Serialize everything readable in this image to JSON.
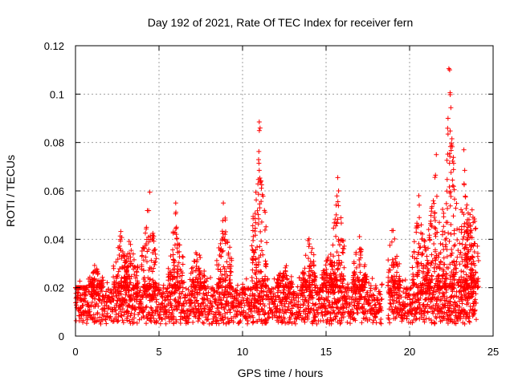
{
  "chart_data": {
    "type": "scatter",
    "title": "Day 192 of 2021, Rate Of TEC Index for receiver fern",
    "xlabel": "GPS time / hours",
    "ylabel": "ROTI / TECUs",
    "xlim": [
      0,
      25
    ],
    "ylim": [
      0,
      0.12
    ],
    "xticks": [
      0,
      5,
      10,
      15,
      20,
      25
    ],
    "yticks": [
      0,
      0.02,
      0.04,
      0.06,
      0.08,
      0.1,
      0.12
    ],
    "xtick_labels": [
      "0",
      "5",
      "10",
      "15",
      "20",
      "25"
    ],
    "ytick_labels": [
      "0",
      "0.02",
      "0.04",
      "0.06",
      "0.08",
      "0.1",
      "0.12"
    ],
    "grid": true,
    "marker": "+",
    "series_color": "#ff0000",
    "data_gap_hours": [
      18.35,
      18.7
    ],
    "x_extent": [
      0,
      24
    ],
    "baseline_band": [
      0.005,
      0.02
    ],
    "bursts": [
      {
        "x": 0.3,
        "peak": 0.02
      },
      {
        "x": 1.2,
        "peak": 0.031
      },
      {
        "x": 2.7,
        "peak": 0.044
      },
      {
        "x": 3.3,
        "peak": 0.046
      },
      {
        "x": 4.4,
        "peak": 0.06
      },
      {
        "x": 6.0,
        "peak": 0.055
      },
      {
        "x": 7.3,
        "peak": 0.038
      },
      {
        "x": 8.9,
        "peak": 0.055
      },
      {
        "x": 11.0,
        "peak": 0.089
      },
      {
        "x": 12.5,
        "peak": 0.032
      },
      {
        "x": 14.0,
        "peak": 0.045
      },
      {
        "x": 15.2,
        "peak": 0.038
      },
      {
        "x": 15.7,
        "peak": 0.066
      },
      {
        "x": 17.0,
        "peak": 0.043
      },
      {
        "x": 19.0,
        "peak": 0.047
      },
      {
        "x": 20.6,
        "peak": 0.059
      },
      {
        "x": 21.5,
        "peak": 0.075
      },
      {
        "x": 22.4,
        "peak": 0.111
      },
      {
        "x": 23.3,
        "peak": 0.077
      },
      {
        "x": 23.7,
        "peak": 0.064
      }
    ],
    "notable_points": [
      {
        "x": 11.0,
        "y": 0.0885
      },
      {
        "x": 11.05,
        "y": 0.086
      },
      {
        "x": 11.0,
        "y": 0.0685
      },
      {
        "x": 11.1,
        "y": 0.064
      },
      {
        "x": 15.7,
        "y": 0.0655
      },
      {
        "x": 15.75,
        "y": 0.06
      },
      {
        "x": 22.35,
        "y": 0.1105
      },
      {
        "x": 22.4,
        "y": 0.11
      },
      {
        "x": 22.3,
        "y": 0.09
      },
      {
        "x": 22.3,
        "y": 0.0835
      },
      {
        "x": 23.25,
        "y": 0.077
      },
      {
        "x": 21.6,
        "y": 0.075
      },
      {
        "x": 21.55,
        "y": 0.0665
      },
      {
        "x": 23.3,
        "y": 0.0685
      },
      {
        "x": 4.45,
        "y": 0.0595
      },
      {
        "x": 6.0,
        "y": 0.055
      },
      {
        "x": 8.85,
        "y": 0.055
      },
      {
        "x": 20.55,
        "y": 0.058
      }
    ]
  }
}
